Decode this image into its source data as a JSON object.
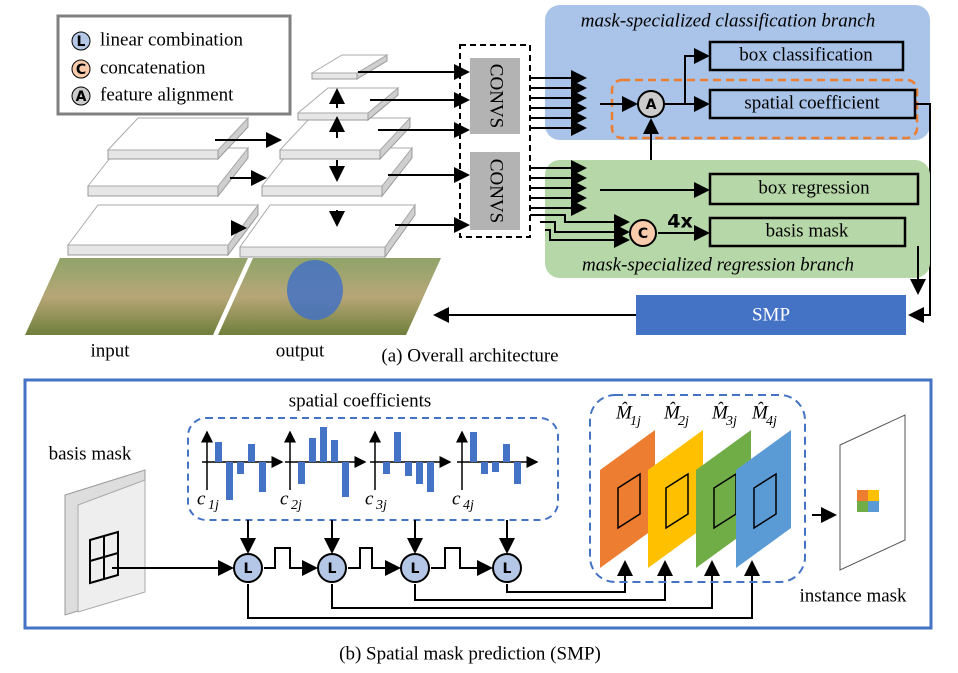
{
  "legend": [
    {
      "symbol": "L",
      "label": "linear combination"
    },
    {
      "symbol": "C",
      "label": "concatenation"
    },
    {
      "symbol": "A",
      "label": "feature alignment"
    }
  ],
  "architecture": {
    "convs": [
      "CONVS",
      "CONVS"
    ],
    "classification_branch": {
      "title": "mask-specialized classification branch",
      "operator": "A",
      "outputs": [
        "box classification",
        "spatial coefficient"
      ]
    },
    "regression_branch": {
      "title": "mask-specialized regression branch",
      "operator": "C",
      "repeat": "4x",
      "outputs": [
        "box regression",
        "basis mask"
      ]
    },
    "smp": "SMP",
    "input": "input",
    "output": "output",
    "caption": "(a) Overall architecture"
  },
  "smp": {
    "coefficients_title": "spatial coefficients",
    "basis_mask": "basis mask",
    "coefficients": [
      {
        "base": "c",
        "sub": "1j"
      },
      {
        "base": "c",
        "sub": "2j"
      },
      {
        "base": "c",
        "sub": "3j"
      },
      {
        "base": "c",
        "sub": "4j"
      }
    ],
    "operators": [
      "L",
      "L",
      "L",
      "L"
    ],
    "masks": [
      {
        "base": "M̂",
        "sub": "1j"
      },
      {
        "base": "M̂",
        "sub": "2j"
      },
      {
        "base": "M̂",
        "sub": "3j"
      },
      {
        "base": "M̂",
        "sub": "4j"
      }
    ],
    "instance_mask": "instance mask",
    "caption": "(b) Spatial mask prediction (SMP)"
  }
}
